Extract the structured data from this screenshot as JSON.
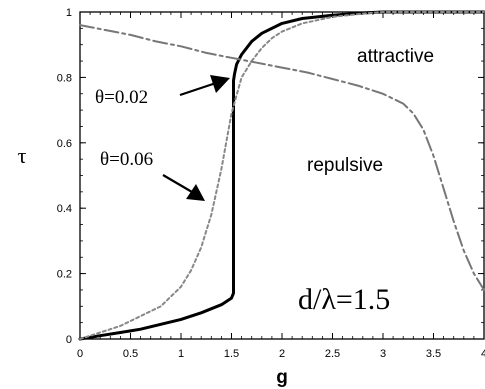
{
  "chart_data": {
    "type": "line",
    "xlabel": "g",
    "ylabel": "τ",
    "xlim": [
      0,
      4
    ],
    "ylim": [
      0,
      1
    ],
    "x_ticks": [
      "0",
      "0.5",
      "1",
      "1.5",
      "2",
      "2.5",
      "3",
      "3.5",
      "4"
    ],
    "y_ticks": [
      "0",
      "0.2",
      "0.4",
      "0.6",
      "0.8",
      "1"
    ],
    "grid": false,
    "series": [
      {
        "name": "θ=0.02",
        "style": "solid",
        "color": "#000000",
        "x": [
          0,
          0.2,
          0.4,
          0.6,
          0.8,
          1.0,
          1.2,
          1.4,
          1.5,
          1.52,
          1.52,
          1.53,
          1.55,
          1.6,
          1.7,
          1.8,
          2.0,
          2.2,
          2.5,
          2.8,
          3.0,
          3.2,
          3.5,
          4.0
        ],
        "y": [
          0,
          0.01,
          0.02,
          0.03,
          0.045,
          0.06,
          0.08,
          0.105,
          0.125,
          0.14,
          0.79,
          0.81,
          0.84,
          0.87,
          0.91,
          0.935,
          0.965,
          0.98,
          0.99,
          0.997,
          1.0,
          1.0,
          1.0,
          1.0
        ]
      },
      {
        "name": "θ=0.06",
        "style": "dotted",
        "color": "#888888",
        "x": [
          0,
          0.2,
          0.4,
          0.6,
          0.8,
          1.0,
          1.1,
          1.2,
          1.3,
          1.4,
          1.5,
          1.6,
          1.7,
          1.8,
          1.9,
          2.0,
          2.2,
          2.5,
          2.8,
          3.0,
          3.5,
          4.0
        ],
        "y": [
          0,
          0.02,
          0.04,
          0.07,
          0.1,
          0.16,
          0.21,
          0.28,
          0.38,
          0.52,
          0.69,
          0.8,
          0.85,
          0.89,
          0.92,
          0.94,
          0.965,
          0.985,
          0.995,
          1.0,
          1.0,
          1.0
        ]
      },
      {
        "name": "",
        "style": "dash-dot",
        "color": "#777777",
        "x": [
          0,
          0.25,
          0.5,
          0.75,
          1.0,
          1.25,
          1.5,
          1.75,
          2.0,
          2.25,
          2.5,
          2.75,
          3.0,
          3.1,
          3.2,
          3.3,
          3.4,
          3.5,
          3.6,
          3.7,
          3.8,
          3.9,
          4.0
        ],
        "y": [
          0.96,
          0.945,
          0.93,
          0.91,
          0.895,
          0.875,
          0.86,
          0.845,
          0.83,
          0.815,
          0.795,
          0.775,
          0.75,
          0.735,
          0.72,
          0.69,
          0.64,
          0.56,
          0.46,
          0.36,
          0.27,
          0.2,
          0.15
        ]
      }
    ],
    "annotations": {
      "attractive": "attractive",
      "repulsive": "repulsive",
      "theta1": "θ=0.02",
      "theta2": "θ=0.06",
      "ratio": "d/λ=1.5"
    }
  }
}
